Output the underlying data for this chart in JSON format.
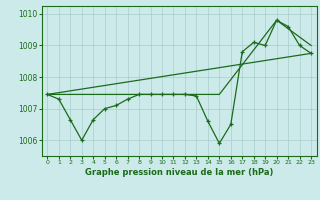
{
  "title": "Graphe pression niveau de la mer (hPa)",
  "bg_color": "#cceaea",
  "line_color": "#1a6b1a",
  "grid_color": "#aacccc",
  "xlim": [
    -0.5,
    23.5
  ],
  "ylim": [
    1005.5,
    1010.25
  ],
  "yticks": [
    1006,
    1007,
    1008,
    1009,
    1010
  ],
  "xticks": [
    0,
    1,
    2,
    3,
    4,
    5,
    6,
    7,
    8,
    9,
    10,
    11,
    12,
    13,
    14,
    15,
    16,
    17,
    18,
    19,
    20,
    21,
    22,
    23
  ],
  "main_x": [
    0,
    1,
    2,
    3,
    4,
    5,
    6,
    7,
    8,
    9,
    10,
    11,
    12,
    13,
    14,
    15,
    16,
    17,
    18,
    19,
    20,
    21,
    22,
    23
  ],
  "main_y": [
    1007.45,
    1007.3,
    1006.65,
    1006.0,
    1006.65,
    1007.0,
    1007.1,
    1007.3,
    1007.45,
    1007.45,
    1007.45,
    1007.45,
    1007.45,
    1007.4,
    1006.6,
    1005.9,
    1006.5,
    1008.8,
    1009.1,
    1009.0,
    1009.8,
    1009.6,
    1009.0,
    1008.75
  ],
  "upper_line_x": [
    0,
    15,
    20,
    23
  ],
  "upper_line_y": [
    1007.45,
    1007.45,
    1009.8,
    1009.0
  ],
  "lower_line_x": [
    0,
    23
  ],
  "lower_line_y": [
    1007.45,
    1008.75
  ]
}
